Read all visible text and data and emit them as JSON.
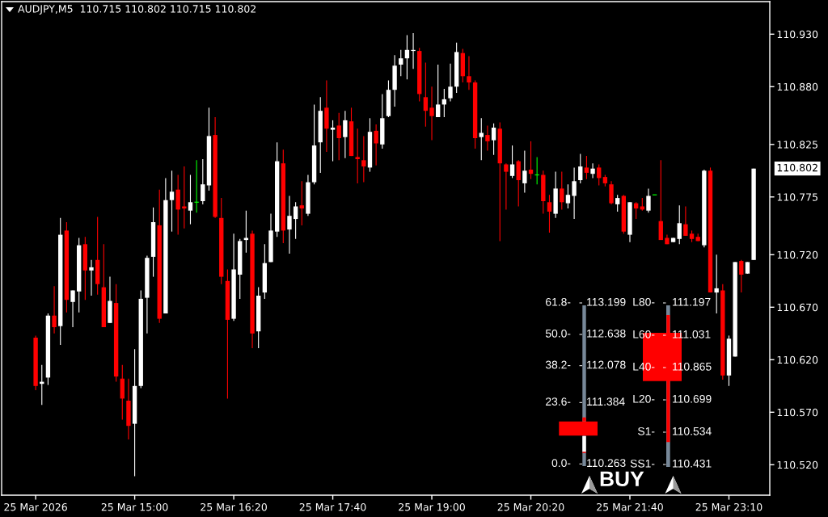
{
  "chart_data": {
    "type": "candlestick",
    "title": "AUDJPY,M5  110.715 110.802 110.715 110.802",
    "categories": [
      "25 Mar 2026",
      null,
      null,
      null,
      null,
      null,
      null,
      null,
      null,
      null,
      null,
      null,
      null,
      null,
      null,
      null,
      "25 Mar 15:00",
      null,
      null,
      null,
      null,
      null,
      null,
      null,
      null,
      null,
      null,
      null,
      null,
      null,
      null,
      null,
      "25 Mar 16:20",
      null,
      null,
      null,
      null,
      null,
      null,
      null,
      null,
      null,
      null,
      null,
      null,
      null,
      null,
      null,
      "25 Mar 17:40",
      null,
      null,
      null,
      null,
      null,
      null,
      null,
      null,
      null,
      null,
      null,
      null,
      null,
      null,
      null,
      "25 Mar 19:00",
      null,
      null,
      null,
      null,
      null,
      null,
      null,
      null,
      null,
      null,
      null,
      null,
      null,
      null,
      null,
      "25 Mar 20:20",
      null,
      null,
      null,
      null,
      null,
      null,
      null,
      null,
      null,
      null,
      null,
      null,
      null,
      null,
      null,
      "25 Mar 21:40",
      null,
      null,
      null,
      null,
      null,
      null,
      null,
      null,
      null,
      null,
      null,
      null,
      null,
      null,
      null,
      "25 Mar 23:10",
      null,
      null,
      null,
      null
    ],
    "ohlc": [
      [
        110.641,
        110.643,
        110.591,
        110.595
      ],
      [
        110.597,
        110.615,
        110.577,
        110.599
      ],
      [
        110.603,
        110.664,
        110.596,
        110.662
      ],
      [
        110.662,
        110.69,
        110.645,
        110.651
      ],
      [
        110.652,
        110.755,
        110.634,
        110.739
      ],
      [
        110.743,
        110.751,
        110.665,
        110.677
      ],
      [
        110.675,
        110.686,
        110.651,
        110.686
      ],
      [
        110.685,
        110.736,
        110.665,
        110.729
      ],
      [
        110.73,
        110.737,
        110.677,
        110.705
      ],
      [
        110.705,
        110.715,
        110.681,
        110.708
      ],
      [
        110.715,
        110.756,
        110.682,
        110.692
      ],
      [
        110.689,
        110.73,
        110.651,
        110.651
      ],
      [
        110.655,
        110.699,
        110.655,
        110.676
      ],
      [
        110.674,
        110.692,
        110.599,
        110.604
      ],
      [
        110.602,
        110.615,
        110.563,
        110.583
      ],
      [
        110.581,
        110.602,
        110.544,
        110.557
      ],
      [
        110.559,
        110.63,
        110.509,
        110.595
      ],
      [
        110.595,
        110.686,
        110.593,
        110.678
      ],
      [
        110.679,
        110.719,
        110.645,
        110.717
      ],
      [
        110.718,
        110.765,
        110.699,
        110.751
      ],
      [
        110.748,
        110.782,
        110.655,
        110.659
      ],
      [
        110.664,
        110.793,
        110.664,
        110.772
      ],
      [
        110.772,
        110.8,
        110.742,
        110.78
      ],
      [
        110.782,
        110.796,
        110.739,
        110.763
      ],
      [
        110.766,
        110.804,
        110.745,
        110.764
      ],
      [
        110.762,
        110.796,
        110.749,
        110.77
      ],
      [
        110.77,
        110.81,
        110.76,
        110.77
      ],
      [
        110.771,
        110.811,
        110.768,
        110.787
      ],
      [
        110.786,
        110.86,
        110.781,
        110.833
      ],
      [
        110.834,
        110.851,
        110.755,
        110.756
      ],
      [
        110.755,
        110.774,
        110.692,
        110.699
      ],
      [
        110.695,
        110.706,
        110.583,
        110.658
      ],
      [
        110.659,
        110.74,
        110.657,
        110.706
      ],
      [
        110.701,
        110.735,
        110.678,
        110.733
      ],
      [
        110.734,
        110.762,
        110.722,
        110.736
      ],
      [
        110.74,
        110.743,
        110.631,
        110.645
      ],
      [
        110.647,
        110.689,
        110.631,
        110.681
      ],
      [
        110.684,
        110.73,
        110.678,
        110.712
      ],
      [
        110.713,
        110.759,
        110.713,
        110.743
      ],
      [
        110.742,
        110.827,
        110.737,
        110.809
      ],
      [
        110.807,
        110.82,
        110.731,
        110.743
      ],
      [
        110.744,
        110.776,
        110.721,
        110.757
      ],
      [
        110.754,
        110.77,
        110.735,
        110.766
      ],
      [
        110.767,
        110.79,
        110.748,
        110.764
      ],
      [
        110.759,
        110.796,
        110.757,
        110.789
      ],
      [
        110.789,
        110.863,
        110.787,
        110.824
      ],
      [
        110.827,
        110.87,
        110.798,
        110.857
      ],
      [
        110.86,
        110.886,
        110.818,
        110.84
      ],
      [
        110.839,
        110.848,
        110.809,
        110.841
      ],
      [
        110.843,
        110.855,
        110.81,
        110.831
      ],
      [
        110.832,
        110.857,
        110.812,
        110.848
      ],
      [
        110.847,
        110.86,
        110.814,
        110.814
      ],
      [
        110.813,
        110.84,
        110.788,
        110.811
      ],
      [
        110.81,
        110.833,
        110.789,
        110.804
      ],
      [
        110.803,
        110.85,
        110.799,
        110.837
      ],
      [
        110.838,
        110.844,
        110.805,
        110.826
      ],
      [
        110.825,
        110.873,
        110.821,
        110.85
      ],
      [
        110.852,
        110.886,
        110.851,
        110.877
      ],
      [
        110.877,
        110.91,
        110.861,
        110.9
      ],
      [
        110.901,
        110.915,
        110.89,
        110.907
      ],
      [
        110.907,
        110.929,
        110.887,
        110.915
      ],
      [
        110.914,
        110.931,
        110.897,
        110.915
      ],
      [
        110.914,
        110.917,
        110.866,
        110.873
      ],
      [
        110.87,
        110.903,
        110.842,
        110.857
      ],
      [
        110.86,
        110.88,
        110.829,
        110.852
      ],
      [
        110.851,
        110.901,
        110.851,
        110.863
      ],
      [
        110.863,
        110.878,
        110.851,
        110.868
      ],
      [
        110.869,
        110.902,
        110.866,
        110.88
      ],
      [
        110.88,
        110.922,
        110.874,
        110.913
      ],
      [
        110.912,
        110.916,
        110.884,
        110.89
      ],
      [
        110.89,
        110.909,
        110.877,
        110.884
      ],
      [
        110.884,
        110.886,
        110.821,
        110.831
      ],
      [
        110.832,
        110.85,
        110.81,
        110.836
      ],
      [
        110.834,
        110.843,
        110.819,
        110.828
      ],
      [
        110.829,
        110.845,
        110.815,
        110.841
      ],
      [
        110.84,
        110.846,
        110.733,
        110.807
      ],
      [
        110.806,
        110.807,
        110.763,
        110.799
      ],
      [
        110.795,
        110.824,
        110.793,
        110.806
      ],
      [
        110.809,
        110.81,
        110.766,
        110.791
      ],
      [
        110.788,
        110.819,
        110.779,
        110.8
      ],
      [
        110.801,
        110.828,
        110.792,
        110.797
      ],
      [
        110.796,
        110.813,
        110.787,
        110.796
      ],
      [
        110.796,
        110.8,
        110.759,
        110.771
      ],
      [
        110.77,
        110.777,
        110.741,
        110.761
      ],
      [
        110.759,
        110.799,
        110.755,
        110.783
      ],
      [
        110.783,
        110.799,
        110.763,
        110.77
      ],
      [
        110.769,
        110.787,
        110.764,
        110.777
      ],
      [
        110.776,
        110.803,
        110.754,
        110.79
      ],
      [
        110.791,
        110.816,
        110.788,
        110.804
      ],
      [
        110.803,
        110.814,
        110.792,
        110.798
      ],
      [
        110.797,
        110.807,
        110.793,
        110.802
      ],
      [
        110.803,
        110.806,
        110.786,
        110.793
      ],
      [
        110.794,
        110.796,
        110.785,
        110.788
      ],
      [
        110.787,
        110.79,
        110.768,
        110.769
      ],
      [
        110.768,
        110.777,
        110.761,
        110.774
      ],
      [
        110.776,
        110.777,
        110.74,
        110.742
      ],
      [
        110.739,
        110.77,
        110.732,
        110.77
      ],
      [
        110.769,
        110.77,
        110.754,
        110.764
      ],
      [
        110.766,
        110.774,
        110.762,
        110.763
      ],
      [
        110.762,
        110.783,
        110.76,
        110.776
      ],
      [
        110.777,
        110.777,
        110.777,
        110.777
      ],
      [
        110.752,
        110.81,
        110.734,
        110.734
      ],
      [
        110.736,
        110.739,
        110.73,
        110.73
      ],
      [
        110.732,
        110.736,
        110.732,
        110.736
      ],
      [
        110.735,
        110.767,
        110.73,
        110.75
      ],
      [
        110.749,
        110.766,
        110.738,
        110.738
      ],
      [
        110.74,
        110.743,
        110.732,
        110.735
      ],
      [
        110.737,
        110.74,
        110.733,
        110.733
      ],
      [
        110.729,
        110.801,
        110.727,
        110.8
      ],
      [
        110.8,
        110.803,
        110.684,
        110.684
      ],
      [
        110.684,
        110.72,
        110.664,
        110.688
      ],
      [
        110.686,
        110.692,
        110.601,
        110.605
      ],
      [
        110.605,
        110.643,
        110.595,
        110.64
      ],
      [
        110.623,
        110.713,
        110.623,
        110.713
      ],
      [
        110.714,
        110.715,
        110.684,
        110.701
      ],
      [
        110.702,
        110.713,
        110.702,
        110.713
      ],
      [
        110.715,
        110.802,
        110.715,
        110.802
      ]
    ],
    "colors": [
      "#ff0000",
      "#ffffff",
      "#ffffff",
      "#ff0000",
      "#ffffff",
      "#ff0000",
      "#ffffff",
      "#ffffff",
      "#ff0000",
      "#ffffff",
      "#ff0000",
      "#ff0000",
      "#ffffff",
      "#ff0000",
      "#ff0000",
      "#ff0000",
      "#ffffff",
      "#ffffff",
      "#ffffff",
      "#ffffff",
      "#ff0000",
      "#ffffff",
      "#ffffff",
      "#ff0000",
      "#ff0000",
      "#ffffff",
      "#00ff00",
      "#ffffff",
      "#ffffff",
      "#ff0000",
      "#ff0000",
      "#ff0000",
      "#ffffff",
      "#ffffff",
      "#ffffff",
      "#ff0000",
      "#ffffff",
      "#ffffff",
      "#ffffff",
      "#ffffff",
      "#ff0000",
      "#ffffff",
      "#ffffff",
      "#ff0000",
      "#ffffff",
      "#ffffff",
      "#ffffff",
      "#ff0000",
      "#ffffff",
      "#ff0000",
      "#ffffff",
      "#ff0000",
      "#ff0000",
      "#ff0000",
      "#ffffff",
      "#ff0000",
      "#ffffff",
      "#ffffff",
      "#ffffff",
      "#ffffff",
      "#ffffff",
      "#ffffff",
      "#ff0000",
      "#ff0000",
      "#ff0000",
      "#ffffff",
      "#ffffff",
      "#ffffff",
      "#ffffff",
      "#ff0000",
      "#ff0000",
      "#ff0000",
      "#ffffff",
      "#ff0000",
      "#ffffff",
      "#ff0000",
      "#ff0000",
      "#ffffff",
      "#ff0000",
      "#ffffff",
      "#ff0000",
      "#00ff00",
      "#ff0000",
      "#ff0000",
      "#ffffff",
      "#ff0000",
      "#ffffff",
      "#ffffff",
      "#ffffff",
      "#ff0000",
      "#ffffff",
      "#ff0000",
      "#ff0000",
      "#ff0000",
      "#ffffff",
      "#ff0000",
      "#ffffff",
      "#ff0000",
      "#ff0000",
      "#ffffff",
      "#00ff00",
      "#ff0000",
      "#ff0000",
      "#ffffff",
      "#ffffff",
      "#ff0000",
      "#ff0000",
      "#ff0000",
      "#ffffff",
      "#ff0000",
      "#ffffff",
      "#ff0000",
      "#ffffff",
      "#ffffff",
      "#ff0000",
      "#ffffff",
      "#ffffff"
    ],
    "ylim": [
      110.491,
      110.961
    ],
    "yticks": [
      {
        "value": 110.93,
        "label": "110.930"
      },
      {
        "value": 110.88,
        "label": "110.880"
      },
      110.825,
      110.775,
      {
        "value": 110.72,
        "label": "110.720"
      },
      {
        "value": 110.67,
        "label": "110.670"
      },
      {
        "value": 110.62,
        "label": "110.620"
      },
      {
        "value": 110.57,
        "label": "110.570"
      },
      {
        "value": 110.52,
        "label": "110.520"
      }
    ],
    "annotations": [
      "61.8-",
      "113.199",
      "50.0-",
      "112.638",
      "38.2-",
      "112.078",
      "23.6-",
      "111.384",
      "0.0-",
      "110.263",
      "L80-",
      "111.197",
      "L60-",
      "111.031",
      "L40-",
      "110.865",
      "L20-",
      "110.699",
      "S1-",
      "110.534",
      "SS1-",
      "110.431",
      "BUY",
      "110.802"
    ]
  }
}
